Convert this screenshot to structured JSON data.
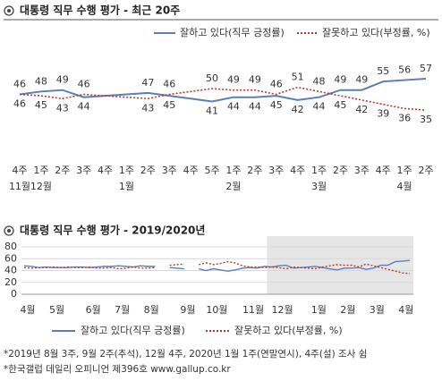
{
  "chart_data": [
    {
      "type": "line",
      "title": "대통령 직무 수행 평가 - 최근 20주",
      "categories": [
        "4주",
        "1주",
        "2주",
        "3주",
        "4주",
        "1주",
        "2주",
        "3주",
        "4주",
        "5주",
        "1주",
        "2주",
        "3주",
        "4주",
        "1주",
        "2주",
        "3주",
        "4주",
        "1주",
        "2주"
      ],
      "months": [
        "11월",
        "12월",
        null,
        null,
        null,
        "1월",
        null,
        null,
        null,
        null,
        "2월",
        null,
        null,
        null,
        "3월",
        null,
        null,
        null,
        "4월",
        null
      ],
      "ylim": [
        30,
        62
      ],
      "series": [
        {
          "name": "잘하고 있다(직무 긍정률)",
          "color": "#5b7fb5",
          "dash": false,
          "values": [
            46,
            48,
            49,
            44,
            45,
            46,
            47,
            45,
            43,
            41,
            44,
            44,
            45,
            42,
            44,
            49,
            49,
            55,
            56,
            57
          ],
          "value_labels": [
            "46",
            "48",
            "49",
            "44",
            null,
            null,
            "47",
            "45",
            null,
            "41",
            "44",
            "44",
            "45",
            "42",
            "44",
            "49",
            "49",
            "55",
            "56",
            "57"
          ]
        },
        {
          "name": "잘못하고 있다(부정률, %)",
          "color": "#b03a2e",
          "dash": true,
          "values": [
            46,
            45,
            43,
            46,
            45,
            44,
            43,
            46,
            48,
            50,
            49,
            49,
            46,
            51,
            48,
            45,
            42,
            39,
            36,
            35
          ],
          "value_labels": [
            "46",
            "45",
            "43",
            "46",
            null,
            null,
            "43",
            "46",
            null,
            "50",
            "49",
            "49",
            "46",
            "51",
            "48",
            "45",
            "42",
            "39",
            "36",
            "35"
          ]
        }
      ]
    },
    {
      "type": "line",
      "title": "대통령 직무 수행 평가 - 2019/2020년",
      "categories": [
        "4월",
        null,
        null,
        null,
        "5월",
        null,
        null,
        null,
        null,
        "6월",
        null,
        null,
        null,
        "7월",
        null,
        null,
        null,
        "8월",
        null,
        null,
        null,
        null,
        "9월",
        null,
        null,
        null,
        "10월",
        null,
        null,
        null,
        null,
        "11월",
        null,
        null,
        null,
        "12월",
        null,
        null,
        null,
        null,
        "1월",
        null,
        null,
        null,
        "2월",
        null,
        null,
        null,
        "3월",
        null,
        null,
        null,
        "4월",
        null
      ],
      "ylim": [
        0,
        80
      ],
      "yticks": [
        0,
        20,
        40,
        60,
        80
      ],
      "grid": true,
      "shade_from": 34,
      "series": [
        {
          "name": "잘하고 있다(직무 긍정률)",
          "color": "#5b7fb5",
          "dash": false,
          "values": [
            48,
            47,
            45,
            46,
            45,
            45,
            45,
            46,
            46,
            45,
            46,
            47,
            47,
            48,
            47,
            46,
            48,
            47,
            47,
            null,
            45,
            44,
            43,
            null,
            43,
            40,
            43,
            41,
            39,
            41,
            44,
            45,
            44,
            47,
            46,
            48,
            49,
            44,
            45,
            46,
            47,
            45,
            43,
            41,
            44,
            44,
            45,
            42,
            44,
            49,
            49,
            55,
            56,
            57
          ]
        },
        {
          "name": "잘못하고 있다(부정률, %)",
          "color": "#b03a2e",
          "dash": true,
          "values": [
            45,
            44,
            45,
            45,
            46,
            45,
            46,
            45,
            45,
            46,
            44,
            44,
            45,
            43,
            44,
            46,
            44,
            44,
            45,
            null,
            49,
            50,
            51,
            null,
            50,
            53,
            50,
            52,
            55,
            53,
            48,
            46,
            46,
            45,
            46,
            45,
            43,
            46,
            45,
            44,
            43,
            46,
            48,
            50,
            49,
            49,
            46,
            51,
            48,
            45,
            42,
            39,
            36,
            35
          ]
        }
      ]
    }
  ],
  "footnotes": [
    "*2019년 8월 3주, 9월 2주(추석), 12월 4주, 2020년 1월 1주(연말연시), 4주(설) 조사 쉼",
    "*한국갤럽 데일리 오피니언 제396호 www.gallup.co.kr"
  ]
}
